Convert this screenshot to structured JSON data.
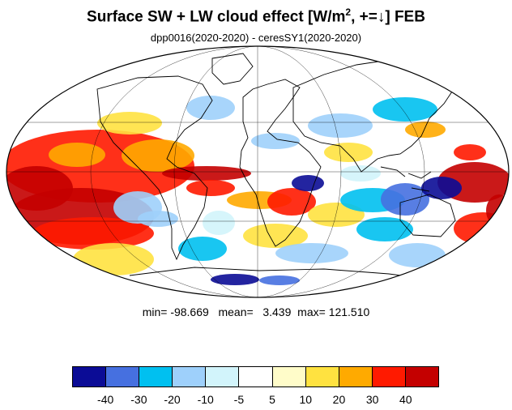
{
  "title_main": "Surface SW + LW cloud effect [W/m",
  "title_sup": "2",
  "title_rest": ", +=↓]  FEB",
  "subtitle": "dpp0016(2020-2020) - ceresSY1(2020-2020)",
  "stats": {
    "min_label": "min=",
    "min": "-98.669",
    "mean_label": "mean=",
    "mean": "3.439",
    "max_label": "max=",
    "max": "121.510"
  },
  "projection": "mollweide",
  "colorbar": {
    "colors": [
      "#0b0c96",
      "#4670e0",
      "#00c0f0",
      "#9ed0fb",
      "#d2f4fb",
      "#ffffff",
      "#fffcc9",
      "#ffe240",
      "#ffaa00",
      "#ff1a00",
      "#c40000"
    ],
    "tick_labels": [
      "-40",
      "-30",
      "-20",
      "-10",
      "-5",
      "5",
      "10",
      "20",
      "30",
      "40"
    ]
  }
}
